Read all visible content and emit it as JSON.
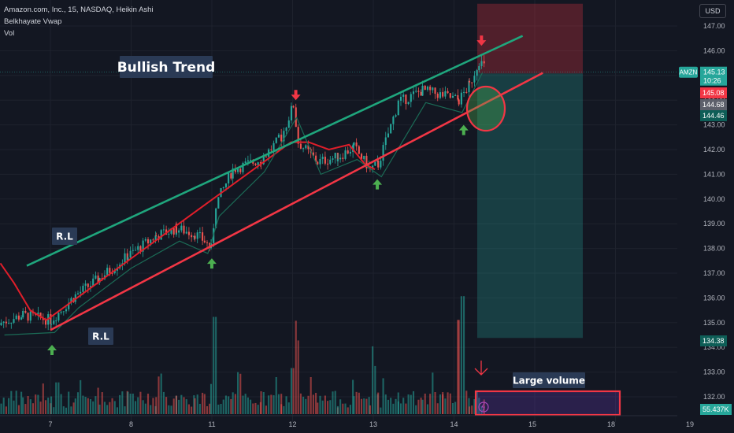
{
  "header": {
    "title": "Amazon.com, Inc., 15, NASDAQ, Heikin Ashi",
    "indicator": "Belkhayate Vwap",
    "volume": "Vol"
  },
  "currency": "USD",
  "colors": {
    "background": "#131722",
    "up": "#26a69a",
    "down": "#ef5350",
    "channel_top": "#1fa67d",
    "channel_bottom": "#f23645",
    "vwap": "#e01e2a",
    "arrow_up": "#4caf50",
    "arrow_down": "#f23645"
  },
  "chart_data": {
    "type": "candlestick",
    "x_ticks": [
      "7",
      "8",
      "11",
      "12",
      "13",
      "14",
      "15",
      "18",
      "19"
    ],
    "y_ticks": [
      "147.00",
      "146.00",
      "145.00",
      "144.00",
      "143.00",
      "142.00",
      "141.00",
      "140.00",
      "139.00",
      "138.00",
      "137.00",
      "136.00",
      "135.00",
      "134.00",
      "133.00",
      "132.00"
    ],
    "ylim": [
      131.4,
      147.9
    ],
    "price_labels": [
      {
        "tag": "AMZN",
        "value": "145.13",
        "sub": "10:26",
        "color": "#26a69a"
      },
      {
        "value": "145.08",
        "color": "#f23645"
      },
      {
        "value": "144.68",
        "color": "#5d606b"
      },
      {
        "value": "144.46",
        "color": "#0e5e57"
      },
      {
        "value": "134.38",
        "color": "#0e5e57"
      },
      {
        "value": "55.437K",
        "color": "#26a69a"
      }
    ],
    "annotations": {
      "trend_label": "Bullish Trend",
      "resistance_label": "R.L",
      "support_label": "R.L",
      "volume_label": "Large volume"
    },
    "position": {
      "entry": 145.08,
      "stop": 147.9,
      "target": 134.38
    },
    "channel_top": {
      "from": [
        0.0,
        137.3
      ],
      "to": [
        5.85,
        146.6
      ]
    },
    "channel_bottom": {
      "from": [
        0.0,
        134.7
      ],
      "to": [
        6.1,
        145.1
      ]
    },
    "arrows_up": [
      [
        0.0,
        134.1
      ],
      [
        1.98,
        137.6
      ],
      [
        4.03,
        140.8
      ],
      [
        5.1,
        143.0
      ]
    ],
    "arrows_down": [
      [
        3.03,
        144.0
      ],
      [
        5.33,
        146.2
      ]
    ],
    "day_anchors": [
      [
        -0.62,
        135.0
      ],
      [
        -0.35,
        135.3
      ],
      [
        0.0,
        135.1
      ],
      [
        0.06,
        135.3
      ],
      [
        0.3,
        136.1
      ],
      [
        0.6,
        136.8
      ],
      [
        0.95,
        137.7
      ],
      [
        1.3,
        138.5
      ],
      [
        1.55,
        138.8
      ],
      [
        1.78,
        138.6
      ],
      [
        1.9,
        138.3
      ],
      [
        1.98,
        138.0
      ],
      [
        2.04,
        139.8
      ],
      [
        2.25,
        141.2
      ],
      [
        2.6,
        141.6
      ],
      [
        2.85,
        142.5
      ],
      [
        3.0,
        143.8
      ],
      [
        3.06,
        142.3
      ],
      [
        3.3,
        141.5
      ],
      [
        3.55,
        141.7
      ],
      [
        3.75,
        142.1
      ],
      [
        3.95,
        141.2
      ],
      [
        4.05,
        141.4
      ],
      [
        4.3,
        143.9
      ],
      [
        4.6,
        144.4
      ],
      [
        4.85,
        144.2
      ],
      [
        5.05,
        144.0
      ],
      [
        5.18,
        144.6
      ],
      [
        5.3,
        145.6
      ],
      [
        5.38,
        145.3
      ]
    ],
    "vwap": [
      [
        -0.62,
        137.4
      ],
      [
        -0.45,
        136.6
      ],
      [
        -0.25,
        135.5
      ],
      [
        -0.05,
        135.1
      ],
      [
        2.98,
        142.3
      ],
      [
        3.2,
        142.3
      ],
      [
        3.45,
        142.0
      ],
      [
        3.7,
        142.2
      ],
      [
        3.9,
        141.4
      ],
      [
        4.02,
        141.2
      ]
    ],
    "volume_spikes": [
      [
        0.08,
        0.31
      ],
      [
        1.0,
        0.2
      ],
      [
        1.55,
        0.18
      ],
      [
        2.02,
        0.95
      ],
      [
        3.0,
        0.45
      ],
      [
        3.06,
        0.72
      ],
      [
        4.0,
        0.47
      ],
      [
        5.05,
        0.92
      ],
      [
        5.1,
        0.96
      ]
    ]
  }
}
